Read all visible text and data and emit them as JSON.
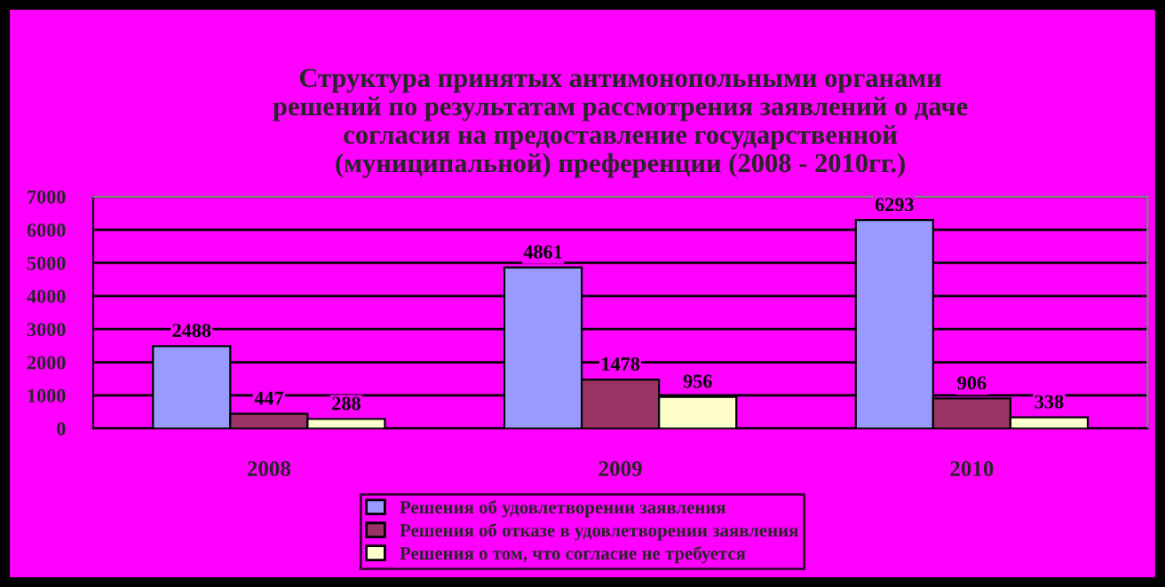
{
  "chart_data": {
    "type": "bar",
    "title": "Структура принятых антимонопольными органами\nрешений по результатам рассмотрения заявлений о даче\nсогласия на предоставление государственной\n(муниципальной) преференции (2008 - 2010гг.)",
    "categories": [
      "2008",
      "2009",
      "2010"
    ],
    "series": [
      {
        "name": "Решения об удовлетворении заявления",
        "color": "#9999ff",
        "values": [
          2488,
          4861,
          6293
        ]
      },
      {
        "name": "Решения об отказе в удовлетворении заявления",
        "color": "#993366",
        "values": [
          447,
          1478,
          906
        ]
      },
      {
        "name": "Решения о том, что согласие не требуется",
        "color": "#ffffcc",
        "values": [
          288,
          956,
          338
        ]
      }
    ],
    "ylim": [
      0,
      7000
    ],
    "yticks": [
      0,
      1000,
      2000,
      3000,
      4000,
      5000,
      6000,
      7000
    ],
    "grid": "y",
    "legend": "bottom",
    "data_labels": true
  }
}
